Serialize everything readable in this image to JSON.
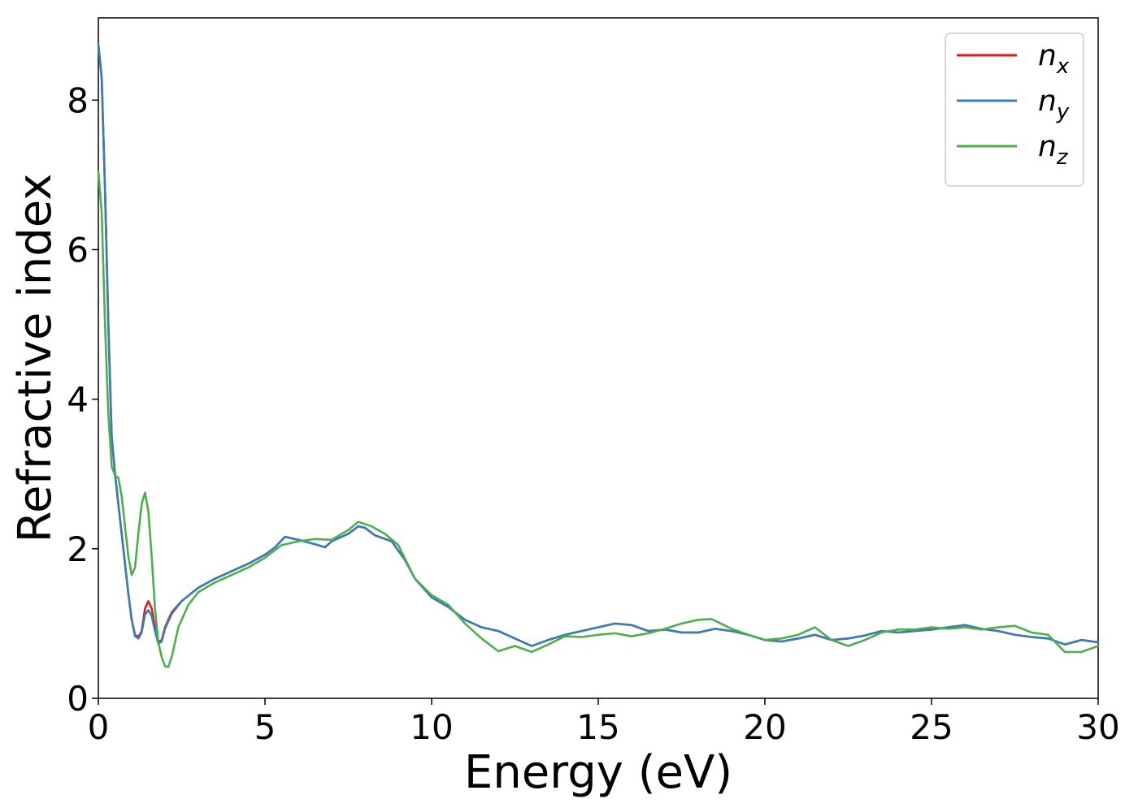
{
  "chart_data": {
    "type": "line",
    "title": "",
    "xlabel": "Energy (eV)",
    "ylabel": "Refractive index",
    "xlim": [
      0,
      30
    ],
    "ylim": [
      0,
      9.1
    ],
    "x_ticks": [
      0,
      5,
      10,
      15,
      20,
      25,
      30
    ],
    "y_ticks": [
      0,
      2,
      4,
      6,
      8
    ],
    "grid": false,
    "legend_position": "top-right",
    "series": [
      {
        "name": "n",
        "subscript": "x",
        "color": "#e41a1c",
        "points": [
          [
            0,
            8.75
          ],
          [
            0.1,
            8.3
          ],
          [
            0.2,
            6.8
          ],
          [
            0.3,
            5.0
          ],
          [
            0.4,
            3.5
          ],
          [
            0.5,
            3.0
          ],
          [
            0.6,
            2.6
          ],
          [
            0.7,
            2.2
          ],
          [
            0.8,
            1.8
          ],
          [
            0.9,
            1.4
          ],
          [
            1.0,
            1.05
          ],
          [
            1.1,
            0.85
          ],
          [
            1.2,
            0.82
          ],
          [
            1.3,
            0.9
          ],
          [
            1.4,
            1.2
          ],
          [
            1.5,
            1.3
          ],
          [
            1.6,
            1.2
          ],
          [
            1.7,
            0.95
          ],
          [
            1.8,
            0.75
          ],
          [
            1.9,
            0.78
          ],
          [
            2.0,
            0.95
          ],
          [
            2.2,
            1.15
          ],
          [
            2.5,
            1.3
          ],
          [
            3.0,
            1.48
          ],
          [
            3.5,
            1.6
          ],
          [
            4.0,
            1.7
          ],
          [
            4.5,
            1.8
          ],
          [
            5.0,
            1.92
          ],
          [
            5.3,
            2.02
          ],
          [
            5.6,
            2.16
          ],
          [
            6.0,
            2.12
          ],
          [
            6.5,
            2.06
          ],
          [
            6.8,
            2.02
          ],
          [
            7.0,
            2.1
          ],
          [
            7.5,
            2.2
          ],
          [
            7.8,
            2.3
          ],
          [
            8.0,
            2.28
          ],
          [
            8.3,
            2.18
          ],
          [
            8.8,
            2.1
          ],
          [
            9.2,
            1.85
          ],
          [
            9.5,
            1.6
          ],
          [
            10.0,
            1.35
          ],
          [
            10.5,
            1.22
          ],
          [
            11.0,
            1.05
          ],
          [
            11.5,
            0.95
          ],
          [
            12.0,
            0.9
          ],
          [
            12.5,
            0.8
          ],
          [
            13.0,
            0.7
          ],
          [
            13.5,
            0.78
          ],
          [
            14.0,
            0.85
          ],
          [
            14.5,
            0.9
          ],
          [
            15.0,
            0.95
          ],
          [
            15.5,
            1.0
          ],
          [
            16.0,
            0.98
          ],
          [
            16.5,
            0.9
          ],
          [
            17.0,
            0.92
          ],
          [
            17.5,
            0.88
          ],
          [
            18.0,
            0.88
          ],
          [
            18.5,
            0.93
          ],
          [
            19.0,
            0.9
          ],
          [
            19.5,
            0.85
          ],
          [
            20.0,
            0.78
          ],
          [
            20.5,
            0.76
          ],
          [
            21.0,
            0.8
          ],
          [
            21.5,
            0.85
          ],
          [
            22.0,
            0.78
          ],
          [
            22.5,
            0.8
          ],
          [
            23.0,
            0.84
          ],
          [
            23.5,
            0.9
          ],
          [
            24.0,
            0.88
          ],
          [
            24.5,
            0.9
          ],
          [
            25.0,
            0.92
          ],
          [
            25.5,
            0.95
          ],
          [
            26.0,
            0.98
          ],
          [
            26.5,
            0.93
          ],
          [
            27.0,
            0.9
          ],
          [
            27.5,
            0.85
          ],
          [
            28.0,
            0.82
          ],
          [
            28.5,
            0.8
          ],
          [
            29.0,
            0.72
          ],
          [
            29.5,
            0.78
          ],
          [
            30.0,
            0.75
          ]
        ]
      },
      {
        "name": "n",
        "subscript": "y",
        "color": "#377eb8",
        "points": [
          [
            0,
            8.75
          ],
          [
            0.1,
            8.3
          ],
          [
            0.2,
            6.8
          ],
          [
            0.3,
            5.0
          ],
          [
            0.4,
            3.5
          ],
          [
            0.5,
            3.0
          ],
          [
            0.6,
            2.6
          ],
          [
            0.7,
            2.2
          ],
          [
            0.8,
            1.8
          ],
          [
            0.9,
            1.4
          ],
          [
            1.0,
            1.05
          ],
          [
            1.1,
            0.83
          ],
          [
            1.2,
            0.8
          ],
          [
            1.3,
            0.88
          ],
          [
            1.4,
            1.12
          ],
          [
            1.5,
            1.18
          ],
          [
            1.6,
            1.1
          ],
          [
            1.7,
            0.9
          ],
          [
            1.8,
            0.73
          ],
          [
            1.9,
            0.76
          ],
          [
            2.0,
            0.93
          ],
          [
            2.2,
            1.13
          ],
          [
            2.5,
            1.3
          ],
          [
            3.0,
            1.48
          ],
          [
            3.5,
            1.6
          ],
          [
            4.0,
            1.7
          ],
          [
            4.5,
            1.8
          ],
          [
            5.0,
            1.92
          ],
          [
            5.3,
            2.02
          ],
          [
            5.6,
            2.16
          ],
          [
            6.0,
            2.12
          ],
          [
            6.5,
            2.06
          ],
          [
            6.8,
            2.02
          ],
          [
            7.0,
            2.1
          ],
          [
            7.5,
            2.2
          ],
          [
            7.8,
            2.3
          ],
          [
            8.0,
            2.28
          ],
          [
            8.3,
            2.18
          ],
          [
            8.8,
            2.1
          ],
          [
            9.2,
            1.85
          ],
          [
            9.5,
            1.6
          ],
          [
            10.0,
            1.35
          ],
          [
            10.5,
            1.22
          ],
          [
            11.0,
            1.05
          ],
          [
            11.5,
            0.95
          ],
          [
            12.0,
            0.9
          ],
          [
            12.5,
            0.8
          ],
          [
            13.0,
            0.7
          ],
          [
            13.5,
            0.78
          ],
          [
            14.0,
            0.85
          ],
          [
            14.5,
            0.9
          ],
          [
            15.0,
            0.95
          ],
          [
            15.5,
            1.0
          ],
          [
            16.0,
            0.98
          ],
          [
            16.5,
            0.9
          ],
          [
            17.0,
            0.92
          ],
          [
            17.5,
            0.88
          ],
          [
            18.0,
            0.88
          ],
          [
            18.5,
            0.93
          ],
          [
            19.0,
            0.9
          ],
          [
            19.5,
            0.85
          ],
          [
            20.0,
            0.78
          ],
          [
            20.5,
            0.76
          ],
          [
            21.0,
            0.8
          ],
          [
            21.5,
            0.85
          ],
          [
            22.0,
            0.78
          ],
          [
            22.5,
            0.8
          ],
          [
            23.0,
            0.84
          ],
          [
            23.5,
            0.9
          ],
          [
            24.0,
            0.88
          ],
          [
            24.5,
            0.9
          ],
          [
            25.0,
            0.92
          ],
          [
            25.5,
            0.95
          ],
          [
            26.0,
            0.98
          ],
          [
            26.5,
            0.93
          ],
          [
            27.0,
            0.9
          ],
          [
            27.5,
            0.85
          ],
          [
            28.0,
            0.82
          ],
          [
            28.5,
            0.8
          ],
          [
            29.0,
            0.72
          ],
          [
            29.5,
            0.78
          ],
          [
            30.0,
            0.75
          ]
        ]
      },
      {
        "name": "n",
        "subscript": "z",
        "color": "#4daf4a",
        "points": [
          [
            0,
            7.05
          ],
          [
            0.1,
            6.5
          ],
          [
            0.2,
            5.0
          ],
          [
            0.3,
            3.8
          ],
          [
            0.4,
            3.1
          ],
          [
            0.5,
            2.98
          ],
          [
            0.6,
            2.95
          ],
          [
            0.7,
            2.7
          ],
          [
            0.8,
            2.3
          ],
          [
            0.9,
            1.9
          ],
          [
            1.0,
            1.65
          ],
          [
            1.1,
            1.75
          ],
          [
            1.2,
            2.2
          ],
          [
            1.3,
            2.6
          ],
          [
            1.4,
            2.75
          ],
          [
            1.5,
            2.5
          ],
          [
            1.6,
            1.9
          ],
          [
            1.7,
            1.2
          ],
          [
            1.8,
            0.75
          ],
          [
            1.9,
            0.55
          ],
          [
            2.0,
            0.43
          ],
          [
            2.1,
            0.42
          ],
          [
            2.2,
            0.55
          ],
          [
            2.4,
            0.95
          ],
          [
            2.7,
            1.25
          ],
          [
            3.0,
            1.42
          ],
          [
            3.5,
            1.55
          ],
          [
            4.0,
            1.65
          ],
          [
            4.5,
            1.75
          ],
          [
            5.0,
            1.88
          ],
          [
            5.5,
            2.05
          ],
          [
            6.0,
            2.1
          ],
          [
            6.5,
            2.13
          ],
          [
            7.0,
            2.12
          ],
          [
            7.5,
            2.25
          ],
          [
            7.8,
            2.36
          ],
          [
            8.2,
            2.3
          ],
          [
            8.6,
            2.2
          ],
          [
            9.0,
            2.05
          ],
          [
            9.5,
            1.6
          ],
          [
            10.0,
            1.38
          ],
          [
            10.5,
            1.25
          ],
          [
            11.0,
            1.0
          ],
          [
            11.5,
            0.8
          ],
          [
            12.0,
            0.63
          ],
          [
            12.5,
            0.7
          ],
          [
            13.0,
            0.62
          ],
          [
            13.5,
            0.72
          ],
          [
            14.0,
            0.83
          ],
          [
            14.5,
            0.82
          ],
          [
            15.0,
            0.85
          ],
          [
            15.5,
            0.87
          ],
          [
            16.0,
            0.83
          ],
          [
            16.5,
            0.87
          ],
          [
            17.0,
            0.93
          ],
          [
            17.5,
            1.0
          ],
          [
            18.0,
            1.05
          ],
          [
            18.4,
            1.06
          ],
          [
            19.0,
            0.93
          ],
          [
            19.5,
            0.85
          ],
          [
            20.0,
            0.78
          ],
          [
            20.5,
            0.8
          ],
          [
            21.0,
            0.85
          ],
          [
            21.5,
            0.95
          ],
          [
            22.0,
            0.78
          ],
          [
            22.5,
            0.7
          ],
          [
            23.0,
            0.78
          ],
          [
            23.5,
            0.88
          ],
          [
            24.0,
            0.92
          ],
          [
            24.5,
            0.92
          ],
          [
            25.0,
            0.95
          ],
          [
            25.5,
            0.93
          ],
          [
            26.0,
            0.95
          ],
          [
            26.5,
            0.92
          ],
          [
            27.0,
            0.95
          ],
          [
            27.5,
            0.97
          ],
          [
            28.0,
            0.88
          ],
          [
            28.5,
            0.85
          ],
          [
            29.0,
            0.62
          ],
          [
            29.5,
            0.62
          ],
          [
            30.0,
            0.7
          ]
        ]
      }
    ]
  }
}
